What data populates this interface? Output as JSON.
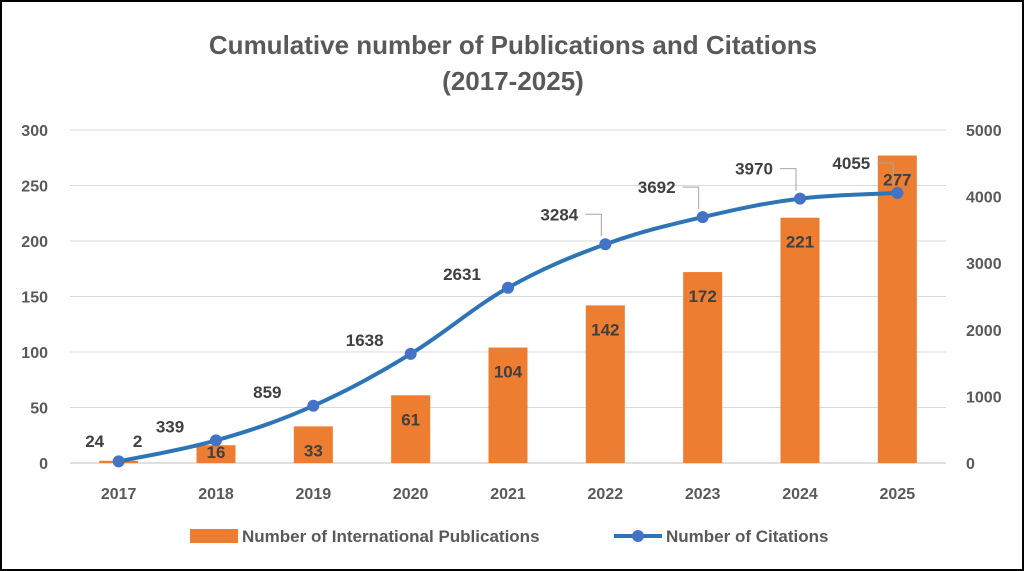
{
  "chart_data": {
    "type": "bar+line",
    "title_lines": [
      "Cumulative number of Publications and Citations",
      "(2017-2025)"
    ],
    "categories": [
      "2017",
      "2018",
      "2019",
      "2020",
      "2021",
      "2022",
      "2023",
      "2024",
      "2025"
    ],
    "series": [
      {
        "name": "Number of International Publications",
        "type": "bar",
        "axis": "left",
        "color": "#ED7D31",
        "values": [
          2,
          16,
          33,
          61,
          104,
          142,
          172,
          221,
          277
        ]
      },
      {
        "name": "Number of Citations",
        "type": "line",
        "axis": "right",
        "color": "#2E75B6",
        "values": [
          24,
          339,
          859,
          1638,
          2631,
          3284,
          3692,
          3970,
          4055
        ]
      }
    ],
    "y_left": {
      "min": 0,
      "max": 300,
      "ticks": [
        "0",
        "50",
        "100",
        "150",
        "200",
        "250",
        "300"
      ]
    },
    "y_right": {
      "min": 0,
      "max": 5000,
      "ticks": [
        "0",
        "1000",
        "2000",
        "3000",
        "4000",
        "5000"
      ]
    },
    "grid": true,
    "legend_position": "bottom"
  }
}
